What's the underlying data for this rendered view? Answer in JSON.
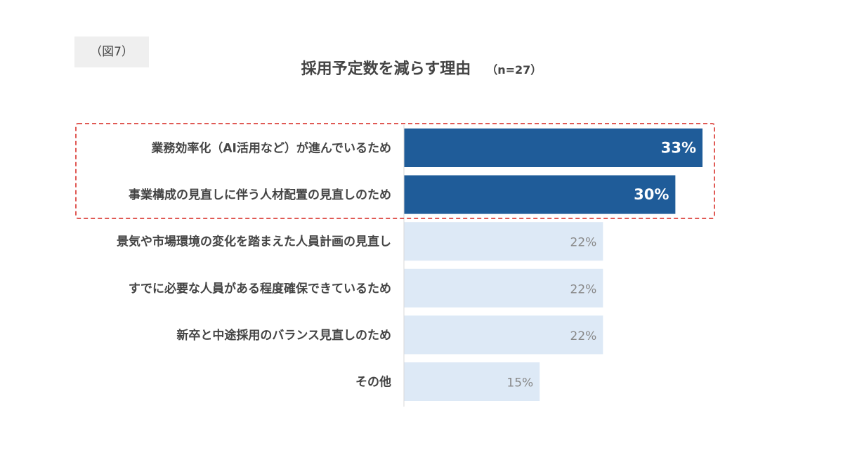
{
  "figure_label": "（図7）",
  "chart_data": {
    "type": "bar",
    "orientation": "horizontal",
    "title": "採用予定数を減らす理由",
    "subtitle": "（n=27）",
    "categories": [
      "業務効率化（AI活用など）が進んでいるため",
      "事業構成の見直しに伴う人材配置の見直しのため",
      "景気や市場環境の変化を踏まえた人員計画の見直し",
      "すでに必要な人員がある程度確保できているため",
      "新卒と中途採用のバランス見直しのため",
      "その他"
    ],
    "values": [
      33,
      30,
      22,
      22,
      22,
      15
    ],
    "value_labels": [
      "33%",
      "30%",
      "22%",
      "22%",
      "22%",
      "15%"
    ],
    "highlighted": [
      true,
      true,
      false,
      false,
      false,
      false
    ],
    "xlim": [
      0,
      33
    ],
    "grid": false,
    "colors": {
      "highlight_bar": "#1f5c99",
      "normal_bar": "#dde9f6",
      "highlight_box": "#e05a55",
      "axis": "#d9d9d9"
    }
  }
}
